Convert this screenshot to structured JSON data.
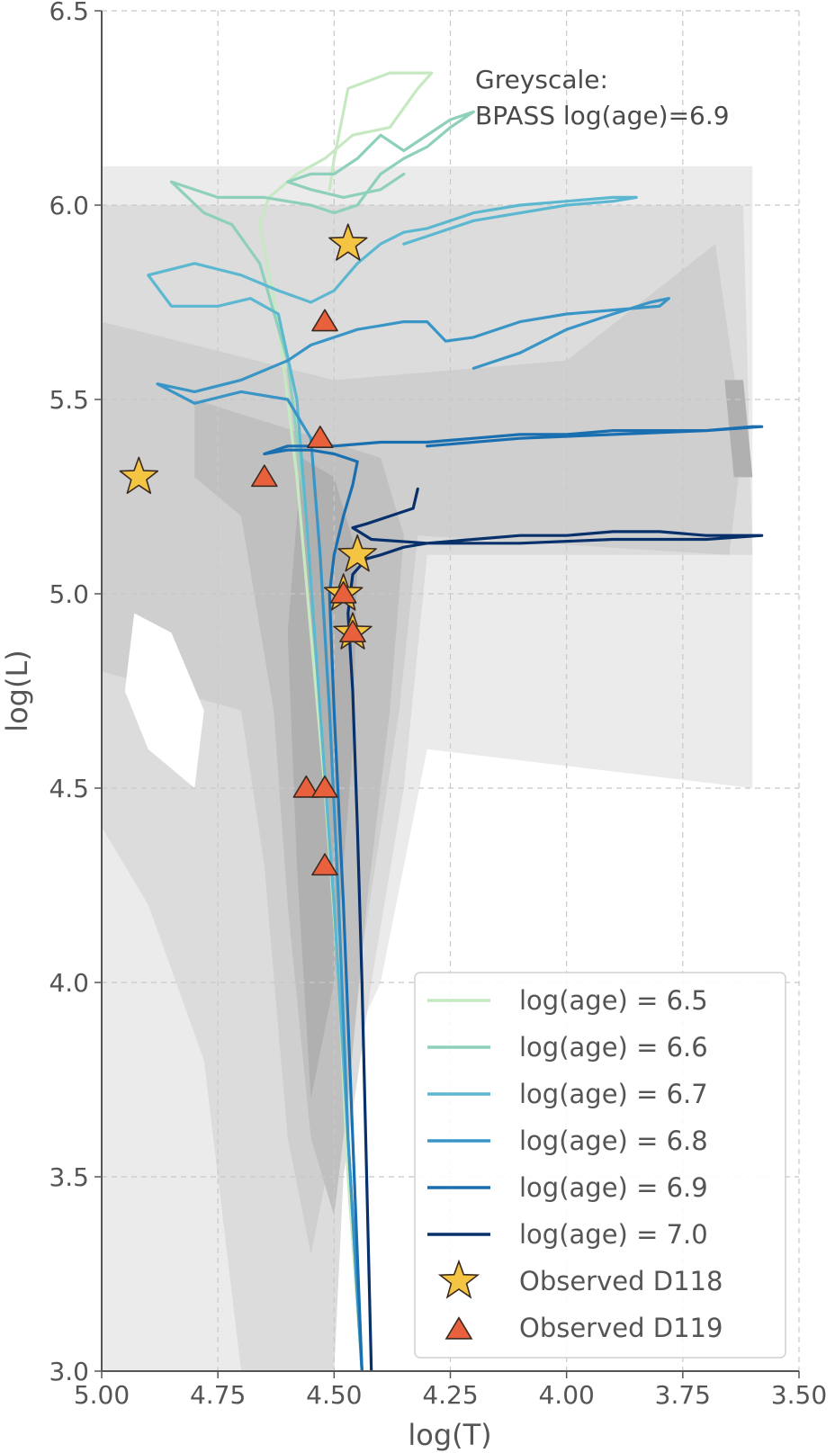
{
  "chart_data": {
    "type": "line",
    "xlabel": "log(T)",
    "ylabel": "log(L)",
    "xlim": [
      5.0,
      3.5
    ],
    "ylim": [
      3.0,
      6.5
    ],
    "x_inverted": true,
    "xticks": [
      "5.00",
      "4.75",
      "4.50",
      "4.25",
      "4.00",
      "3.75",
      "3.50"
    ],
    "yticks": [
      "3.0",
      "3.5",
      "4.0",
      "4.5",
      "5.0",
      "5.5",
      "6.0",
      "6.5"
    ],
    "grid": true,
    "annotation": "Greyscale:\nBPASS log(age)=6.9",
    "legend_position": "lower-right",
    "background_density": {
      "description": "greyscale BPASS contours",
      "regions": [
        {
          "level": 1,
          "polygon": [
            [
              5.0,
              6.1
            ],
            [
              3.6,
              6.1
            ],
            [
              3.6,
              4.5
            ],
            [
              4.3,
              4.6
            ],
            [
              4.4,
              4.0
            ],
            [
              4.55,
              3.6
            ],
            [
              4.62,
              3.2
            ],
            [
              4.65,
              3.0
            ],
            [
              5.0,
              3.0
            ]
          ]
        },
        {
          "level": 2,
          "polygon": [
            [
              5.0,
              6.0
            ],
            [
              3.62,
              6.0
            ],
            [
              3.6,
              5.1
            ],
            [
              4.3,
              5.1
            ],
            [
              4.35,
              4.5
            ],
            [
              4.42,
              4.0
            ],
            [
              4.48,
              3.5
            ],
            [
              4.5,
              3.0
            ],
            [
              4.7,
              3.0
            ],
            [
              4.78,
              3.8
            ],
            [
              4.9,
              4.2
            ],
            [
              5.0,
              4.4
            ]
          ]
        },
        {
          "level": 3,
          "polygon": [
            [
              5.0,
              5.7
            ],
            [
              4.5,
              5.55
            ],
            [
              4.0,
              5.6
            ],
            [
              3.68,
              5.9
            ],
            [
              3.62,
              5.4
            ],
            [
              3.65,
              5.1
            ],
            [
              4.32,
              5.15
            ],
            [
              4.36,
              4.7
            ],
            [
              4.45,
              4.0
            ],
            [
              4.5,
              3.6
            ],
            [
              4.55,
              3.3
            ],
            [
              4.6,
              3.6
            ],
            [
              4.65,
              4.3
            ],
            [
              4.7,
              4.7
            ],
            [
              5.0,
              4.8
            ]
          ]
        },
        {
          "level": 4,
          "polygon": [
            [
              4.8,
              5.5
            ],
            [
              4.4,
              5.35
            ],
            [
              4.35,
              5.15
            ],
            [
              4.38,
              4.7
            ],
            [
              4.43,
              4.2
            ],
            [
              4.47,
              3.7
            ],
            [
              4.5,
              3.4
            ],
            [
              4.55,
              3.6
            ],
            [
              4.6,
              4.2
            ],
            [
              4.63,
              4.7
            ],
            [
              4.7,
              5.2
            ],
            [
              4.8,
              5.3
            ]
          ]
        },
        {
          "level": 5,
          "polygon": [
            [
              4.57,
              5.35
            ],
            [
              4.5,
              5.3
            ],
            [
              4.45,
              5.1
            ],
            [
              4.46,
              4.6
            ],
            [
              4.5,
              4.0
            ],
            [
              4.55,
              3.7
            ],
            [
              4.58,
              4.3
            ],
            [
              4.6,
              4.9
            ]
          ]
        },
        {
          "level": 5,
          "polygon": [
            [
              3.66,
              5.55
            ],
            [
              3.62,
              5.55
            ],
            [
              3.6,
              5.3
            ],
            [
              3.64,
              5.3
            ]
          ]
        },
        {
          "level": 0,
          "polygon": [
            [
              4.93,
              4.95
            ],
            [
              4.85,
              4.9
            ],
            [
              4.78,
              4.7
            ],
            [
              4.8,
              4.5
            ],
            [
              4.9,
              4.6
            ],
            [
              4.95,
              4.75
            ]
          ]
        }
      ]
    },
    "series": [
      {
        "name": "log(age) = 6.5",
        "color": "#c6e9c2",
        "x": [
          4.44,
          4.47,
          4.49,
          4.52,
          4.55,
          4.58,
          4.62,
          4.66,
          4.64,
          4.58,
          4.52,
          4.46,
          4.38,
          4.32,
          4.29,
          4.3,
          4.38,
          4.47,
          4.48,
          4.5,
          4.51
        ],
        "y": [
          3.0,
          3.5,
          4.0,
          4.5,
          4.9,
          5.3,
          5.7,
          5.95,
          6.02,
          6.08,
          6.12,
          6.18,
          6.2,
          6.3,
          6.34,
          6.34,
          6.34,
          6.3,
          6.24,
          6.12,
          6.04
        ]
      },
      {
        "name": "log(age) = 6.6",
        "color": "#8ed0bb",
        "x": [
          4.44,
          4.47,
          4.5,
          4.53,
          4.56,
          4.6,
          4.66,
          4.72,
          4.78,
          4.85,
          4.75,
          4.65,
          4.55,
          4.5,
          4.45,
          4.4,
          4.35,
          4.3,
          4.25,
          4.2,
          4.25,
          4.35,
          4.4,
          4.45,
          4.5,
          4.55,
          4.6,
          4.55,
          4.48,
          4.4,
          4.35
        ],
        "y": [
          3.0,
          3.6,
          4.2,
          4.7,
          5.2,
          5.6,
          5.85,
          5.95,
          5.98,
          6.06,
          6.02,
          6.02,
          6.0,
          5.98,
          6.0,
          6.08,
          6.12,
          6.15,
          6.2,
          6.24,
          6.22,
          6.14,
          6.18,
          6.12,
          6.08,
          6.08,
          6.06,
          6.04,
          6.02,
          6.04,
          6.08
        ]
      },
      {
        "name": "log(age) = 6.7",
        "color": "#5cb8d0",
        "x": [
          4.44,
          4.47,
          4.5,
          4.53,
          4.56,
          4.58,
          4.62,
          4.68,
          4.75,
          4.85,
          4.9,
          4.8,
          4.7,
          4.62,
          4.55,
          4.5,
          4.45,
          4.4,
          4.35,
          4.3,
          4.25,
          4.2,
          4.1,
          4.0,
          3.9,
          3.85,
          3.9,
          4.0,
          4.2,
          4.3,
          4.35
        ],
        "y": [
          3.0,
          3.6,
          4.2,
          4.7,
          5.2,
          5.5,
          5.72,
          5.76,
          5.74,
          5.74,
          5.82,
          5.85,
          5.82,
          5.78,
          5.75,
          5.78,
          5.85,
          5.9,
          5.93,
          5.94,
          5.96,
          5.98,
          6.0,
          6.01,
          6.02,
          6.02,
          6.01,
          6.0,
          5.96,
          5.92,
          5.9
        ]
      },
      {
        "name": "log(age) = 6.8",
        "color": "#3a95c7",
        "x": [
          4.44,
          4.47,
          4.49,
          4.51,
          4.53,
          4.55,
          4.6,
          4.7,
          4.8,
          4.88,
          4.8,
          4.7,
          4.6,
          4.55,
          4.5,
          4.45,
          4.4,
          4.35,
          4.3,
          4.26,
          4.2,
          4.1,
          4.0,
          3.9,
          3.8,
          3.78,
          3.82,
          3.9,
          4.0,
          4.1,
          4.2
        ],
        "y": [
          3.0,
          3.6,
          4.2,
          4.7,
          5.1,
          5.4,
          5.5,
          5.52,
          5.49,
          5.54,
          5.52,
          5.55,
          5.6,
          5.64,
          5.66,
          5.68,
          5.69,
          5.7,
          5.7,
          5.65,
          5.66,
          5.7,
          5.72,
          5.73,
          5.74,
          5.76,
          5.75,
          5.72,
          5.68,
          5.62,
          5.58
        ]
      },
      {
        "name": "log(age) = 6.9",
        "color": "#1a6fb0",
        "x": [
          4.44,
          4.46,
          4.48,
          4.5,
          4.51,
          4.5,
          4.48,
          4.46,
          4.45,
          4.5,
          4.55,
          4.6,
          4.65,
          4.6,
          4.5,
          4.4,
          4.3,
          4.2,
          4.1,
          4.0,
          3.9,
          3.8,
          3.7,
          3.6,
          3.58,
          3.7,
          3.9,
          4.1,
          4.3
        ],
        "y": [
          3.0,
          3.6,
          4.2,
          4.7,
          5.0,
          5.1,
          5.2,
          5.28,
          5.34,
          5.36,
          5.37,
          5.37,
          5.36,
          5.38,
          5.38,
          5.39,
          5.39,
          5.4,
          5.41,
          5.41,
          5.42,
          5.42,
          5.42,
          5.43,
          5.43,
          5.42,
          5.41,
          5.4,
          5.38
        ]
      },
      {
        "name": "log(age) = 7.0",
        "color": "#08306b",
        "x": [
          4.42,
          4.43,
          4.44,
          4.45,
          4.46,
          4.47,
          4.46,
          4.43,
          4.4,
          4.35,
          4.3,
          4.2,
          4.1,
          4.0,
          3.9,
          3.8,
          3.7,
          3.6,
          3.58,
          3.7,
          3.9,
          4.1,
          4.3,
          4.42,
          4.46,
          4.43,
          4.38,
          4.33,
          4.32
        ],
        "y": [
          3.0,
          3.5,
          4.0,
          4.4,
          4.75,
          4.95,
          5.05,
          5.09,
          5.1,
          5.12,
          5.13,
          5.14,
          5.15,
          5.15,
          5.16,
          5.16,
          5.15,
          5.15,
          5.15,
          5.14,
          5.14,
          5.13,
          5.13,
          5.14,
          5.17,
          5.18,
          5.2,
          5.22,
          5.27
        ]
      }
    ],
    "scatter": [
      {
        "name": "Observed D118",
        "marker": "star",
        "color": "#f4c542",
        "points": [
          [
            4.92,
            5.3
          ],
          [
            4.47,
            5.9
          ],
          [
            4.45,
            5.1
          ],
          [
            4.48,
            5.0
          ],
          [
            4.46,
            4.9
          ]
        ]
      },
      {
        "name": "Observed D119",
        "marker": "triangle",
        "color": "#e8603c",
        "points": [
          [
            4.52,
            5.7
          ],
          [
            4.53,
            5.4
          ],
          [
            4.65,
            5.3
          ],
          [
            4.48,
            5.0
          ],
          [
            4.46,
            4.9
          ],
          [
            4.56,
            4.5
          ],
          [
            4.52,
            4.5
          ],
          [
            4.52,
            4.3
          ]
        ]
      }
    ]
  }
}
